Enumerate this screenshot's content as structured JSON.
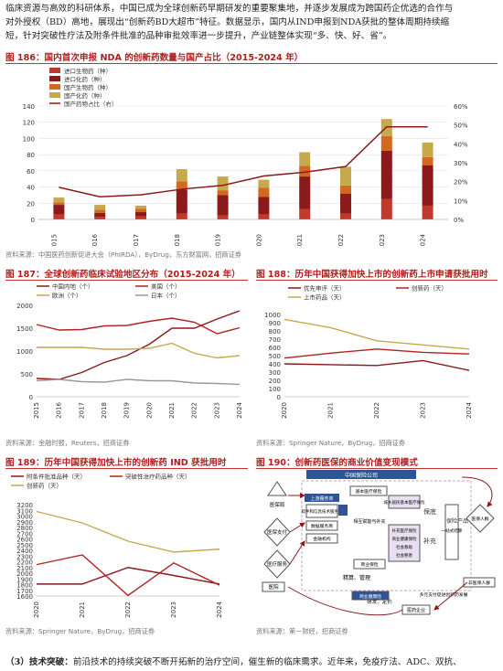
{
  "intro_line1": "临床资源与高效的科研体系，中国已成为全球创新药早期研发的重要聚集地，并逐步发展成为跨国药企优选的合作与",
  "intro_line2": "对外授权（BD）高地，展现出“创新药BD大超市”特征。数据显示，国内从IND申报到NDA获批的整体周期持续缩",
  "intro_line3": "短，针对突破性疗法及附条件批准的品种审批效率进一步提升，产业链整体实现“多、快、好、省”。",
  "fig186": {
    "title": "图 186：国内首次申报 NDA 的创新药数量与国产占比（2015-2024 年）",
    "source": "资料来源：中国医药创新促进大会（PhIRDA），ByDrug，东方财富网，招商证券",
    "legend": [
      "进口生物药（种）",
      "进口化药（种）",
      "国产生物药（种）",
      "国产化药（种）",
      "国产药物占比（右）"
    ],
    "colors": [
      "#c0392b",
      "#8b1a1a",
      "#d2691e",
      "#c8a84e",
      "#8b1a1a"
    ]
  },
  "fig187": {
    "title": "图 187：全球创新药临床试验地区分布（2015-2024 年）",
    "source": "资料来源：金融时报，Reuters，招商证券",
    "legend": [
      "中国内地（个）",
      "美国（个）",
      "欧洲（个）",
      "日本（个）"
    ]
  },
  "fig188": {
    "title": "图 188：历年中国获得加快上市的创新药上市申请获批用时",
    "source": "资料来源：Springer Nature，ByDrug，招商证券",
    "legend": [
      "优先审评（天）",
      "创新药（天）",
      "上市药品（天）"
    ]
  },
  "fig189": {
    "title": "图 189：历年中国获得加快上市的创新药 IND 获批用时",
    "source": "资料来源：Springer Nature，ByDrug，招商证券",
    "legend": [
      "附条件批准品种（天）",
      "突破性治疗药品种（天）",
      "创新药（天）"
    ]
  },
  "fig190": {
    "title": "图 190：创新药医保的商业价值变现模式",
    "source": "资料来源：第一财经，招商证券",
    "labels": {
      "top": "中国保险公司",
      "hospital": "医保局",
      "payer": "医保支付",
      "gov": "医疗服务",
      "patient": "医院",
      "platform": "上游服务商",
      "insurer": "保险产品",
      "left1": "基本医疗保险",
      "left2": "商业保险",
      "center1": "相互赋能与补充",
      "p1": "城乡居民基本医疗保险",
      "p2": "保底",
      "p3": "补充",
      "p4": "多元支付促进创新药发展",
      "s1": "软件和信息技术服务商",
      "s2": "数据服务商",
      "s3": "金融机构",
      "b1": "补充医疗保险",
      "b2": "商业健康保险",
      "b3": "社会救助",
      "b4": "社会慈善",
      "b5": "一站式结算",
      "jg": "精算、管理",
      "yf": "研发、定价",
      "yy": "医药企业",
      "sh": "非医保人群",
      "ry": "医保人群",
      "ctr": "商业健康险"
    }
  },
  "bottom_bold": "（3）技术突破：",
  "bottom_text": "前沿技术的持续突破不断开拓新的治疗空间，催生新的临床需求。近年来，免疫疗法、ADC、双抗、",
  "chart_data": [
    {
      "type": "bar",
      "title": "国内首次申报 NDA 的创新药数量与国产占比（2015-2024 年）",
      "categories": [
        "2015",
        "2016",
        "2017",
        "2018",
        "2019",
        "2020",
        "2021",
        "2022",
        "2023",
        "2024"
      ],
      "series": [
        {
          "name": "进口生物药（种）",
          "values": [
            6,
            3,
            4,
            7,
            5,
            6,
            13,
            7,
            25,
            17
          ]
        },
        {
          "name": "进口化药（种）",
          "values": [
            12,
            5,
            5,
            30,
            25,
            22,
            40,
            25,
            60,
            50
          ]
        },
        {
          "name": "国产生物药（种）",
          "values": [
            3,
            4,
            4,
            10,
            6,
            11,
            13,
            10,
            18,
            10
          ]
        },
        {
          "name": "国产化药（种）",
          "values": [
            6,
            6,
            4,
            15,
            17,
            10,
            17,
            23,
            21,
            18
          ]
        },
        {
          "name": "国产药物占比（右）",
          "values": [
            0.17,
            0.12,
            0.13,
            0.16,
            0.18,
            0.23,
            0.25,
            0.28,
            0.49,
            0.49
          ]
        }
      ],
      "ylim": [
        0,
        140
      ],
      "y2lim": [
        0,
        0.6
      ]
    },
    {
      "type": "line",
      "title": "全球创新药临床试验地区分布（2015-2024 年）",
      "categories": [
        "2015",
        "2016",
        "2017",
        "2018",
        "2019",
        "2020",
        "2021",
        "2022",
        "2023",
        "2024"
      ],
      "series": [
        {
          "name": "中国内地（个）",
          "values": [
            400,
            380,
            530,
            750,
            900,
            1150,
            1500,
            1500,
            1700,
            1880
          ]
        },
        {
          "name": "美国（个）",
          "values": [
            1580,
            1460,
            1470,
            1550,
            1560,
            1650,
            1720,
            1630,
            1380,
            1510
          ]
        },
        {
          "name": "欧洲（个）",
          "values": [
            1080,
            1080,
            1080,
            1040,
            1040,
            1060,
            1170,
            950,
            850,
            900
          ]
        },
        {
          "name": "日本（个）",
          "values": [
            350,
            380,
            330,
            320,
            380,
            350,
            350,
            300,
            290,
            270
          ]
        }
      ],
      "ylim": [
        0,
        2000
      ]
    },
    {
      "type": "line",
      "title": "历年中国获得加快上市的创新药上市申请获批用时",
      "categories": [
        "2020",
        "2021",
        "2022",
        "2023",
        "2024"
      ],
      "series": [
        {
          "name": "优先审评（天）",
          "values": [
            400,
            390,
            380,
            440,
            320
          ]
        },
        {
          "name": "创新药（天）",
          "values": [
            470,
            530,
            580,
            540,
            520
          ]
        },
        {
          "name": "上市药品（天）",
          "values": [
            940,
            840,
            680,
            630,
            580
          ]
        }
      ],
      "ylim": [
        0,
        1000
      ]
    },
    {
      "type": "line",
      "title": "历年中国获得加快上市的创新药 IND 获批用时",
      "categories": [
        "2020",
        "2021",
        "2022",
        "2023",
        "2024"
      ],
      "series": [
        {
          "name": "附条件批准品种（天）",
          "values": [
            1810,
            1810,
            2100,
            1960,
            1810
          ]
        },
        {
          "name": "突破性治疗药品种（天）",
          "values": [
            2150,
            2320,
            1610,
            2180,
            1790
          ]
        },
        {
          "name": "创新药（天）",
          "values": [
            3080,
            2880,
            2560,
            2370,
            2420
          ]
        }
      ],
      "ylim": [
        1600,
        3200
      ]
    }
  ]
}
